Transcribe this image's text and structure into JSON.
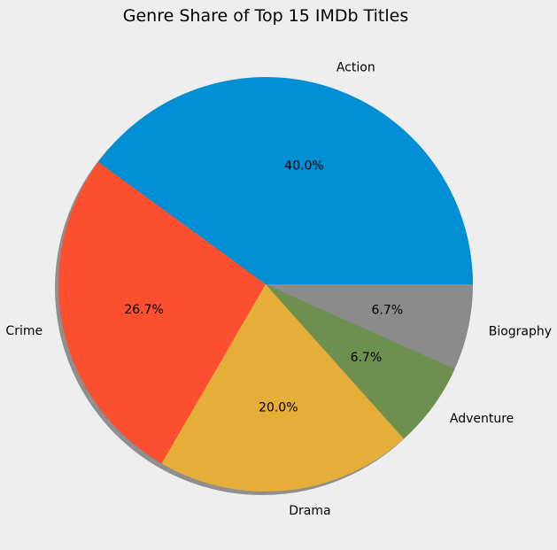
{
  "chart_data": {
    "type": "pie",
    "title": "Genre Share of Top 15 IMDb Titles",
    "slices": [
      {
        "label": "Action",
        "value": 40.0,
        "pct_label": "40.0%",
        "color": "#008fd5"
      },
      {
        "label": "Crime",
        "value": 26.7,
        "pct_label": "26.7%",
        "color": "#fc4f30"
      },
      {
        "label": "Drama",
        "value": 20.0,
        "pct_label": "20.0%",
        "color": "#e5ae38"
      },
      {
        "label": "Adventure",
        "value": 6.7,
        "pct_label": "6.7%",
        "color": "#6d904f"
      },
      {
        "label": "Biography",
        "value": 6.7,
        "pct_label": "6.7%",
        "color": "#8b8b8b"
      }
    ],
    "start_angle_deg": 0,
    "direction": "counterclockwise",
    "shadow": true,
    "legend": "none"
  }
}
